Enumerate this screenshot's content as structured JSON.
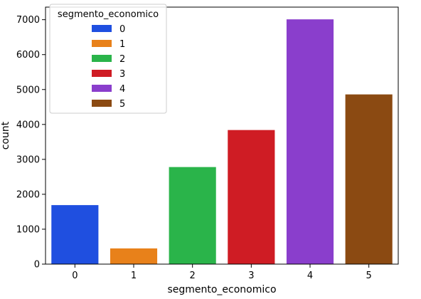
{
  "chart_data": {
    "type": "bar",
    "xlabel": "segmento_economico",
    "ylabel": "count",
    "categories": [
      "0",
      "1",
      "2",
      "3",
      "4",
      "5"
    ],
    "values": [
      1690,
      450,
      2780,
      3840,
      7010,
      4860
    ],
    "colors": [
      "#1f4fe0",
      "#e8811a",
      "#2ab44a",
      "#cf1c24",
      "#8a3ecc",
      "#8b4a12"
    ],
    "ylim": [
      0,
      7360
    ],
    "yticks": [
      0,
      1000,
      2000,
      3000,
      4000,
      5000,
      6000,
      7000
    ],
    "grid": false,
    "legend": {
      "title": "segmento_economico",
      "placement": "top-left",
      "entries": [
        "0",
        "1",
        "2",
        "3",
        "4",
        "5"
      ]
    }
  }
}
